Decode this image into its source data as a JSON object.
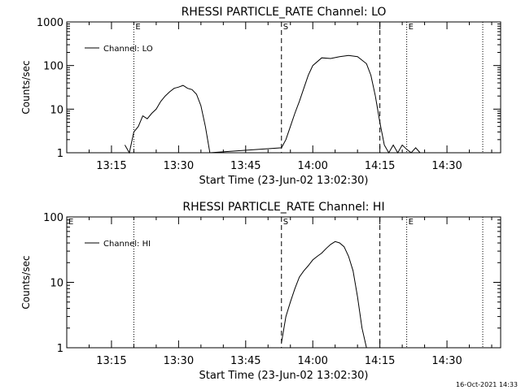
{
  "footer": {
    "date_stamp": "16-Oct-2021 14:33"
  },
  "chart_data": [
    {
      "type": "line",
      "title": "RHESSI PARTICLE_RATE Channel: LO",
      "xlabel": "Start Time (23-Jun-02 13:02:30)",
      "ylabel": "Counts/sec",
      "yscale": "log",
      "xlim": [
        "13:05",
        "14:42"
      ],
      "ylim": [
        1,
        1000
      ],
      "x_ticks": [
        "13:15",
        "13:30",
        "13:45",
        "14:00",
        "14:15",
        "14:30"
      ],
      "y_ticks": [
        "1",
        "10",
        "100",
        "1000"
      ],
      "legend": {
        "position": "top-left",
        "label": "Channel: LO"
      },
      "markers": [
        {
          "time": "13:20",
          "style": "dotted",
          "label": "E"
        },
        {
          "time": "13:53",
          "style": "dashed",
          "label": "S"
        },
        {
          "time": "14:15",
          "style": "dashed",
          "label": ""
        },
        {
          "time": "14:21",
          "style": "dotted",
          "label": "E"
        },
        {
          "time": "14:38",
          "style": "dotted",
          "label": ""
        }
      ],
      "series": [
        {
          "x": [
            "13:18",
            "13:19",
            "13:20",
            "13:21",
            "13:22",
            "13:23",
            "13:24",
            "13:25",
            "13:26",
            "13:27",
            "13:28",
            "13:29",
            "13:30",
            "13:31",
            "13:32",
            "13:33",
            "13:34",
            "13:35",
            "13:36",
            "13:37",
            "13:53",
            "13:54",
            "13:55",
            "13:56",
            "13:57",
            "13:58",
            "13:59",
            "14:00",
            "14:02",
            "14:04",
            "14:06",
            "14:08",
            "14:10",
            "14:12",
            "14:13",
            "14:14",
            "14:15",
            "14:16",
            "14:17",
            "14:18",
            "14:19",
            "14:20",
            "14:21",
            "14:22",
            "14:23",
            "14:24"
          ],
          "y": [
            1.5,
            1,
            3,
            4,
            7,
            6,
            8,
            10,
            15,
            20,
            25,
            30,
            32,
            35,
            30,
            28,
            22,
            12,
            4,
            1,
            1.3,
            2,
            4,
            8,
            15,
            30,
            60,
            100,
            150,
            145,
            160,
            170,
            160,
            110,
            60,
            20,
            5,
            1.5,
            1,
            1.5,
            1,
            1.5,
            1.2,
            1,
            1.3,
            1
          ]
        }
      ]
    },
    {
      "type": "line",
      "title": "RHESSI PARTICLE_RATE Channel: HI",
      "xlabel": "Start Time (23-Jun-02 13:02:30)",
      "ylabel": "Counts/sec",
      "yscale": "log",
      "xlim": [
        "13:05",
        "14:42"
      ],
      "ylim": [
        1,
        100
      ],
      "x_ticks": [
        "13:15",
        "13:30",
        "13:45",
        "14:00",
        "14:15",
        "14:30"
      ],
      "y_ticks": [
        "1",
        "10",
        "100"
      ],
      "legend": {
        "position": "top-left",
        "label": "Channel: HI"
      },
      "markers": [
        {
          "time": "13:05",
          "style": "none",
          "label": "E"
        },
        {
          "time": "13:20",
          "style": "dotted",
          "label": ""
        },
        {
          "time": "13:53",
          "style": "dashed",
          "label": "S"
        },
        {
          "time": "14:15",
          "style": "dashed",
          "label": ""
        },
        {
          "time": "14:21",
          "style": "dotted",
          "label": "E"
        },
        {
          "time": "14:38",
          "style": "dotted",
          "label": ""
        }
      ],
      "series": [
        {
          "x": [
            "13:53",
            "13:54",
            "13:55",
            "13:56",
            "13:57",
            "13:58",
            "13:59",
            "14:00",
            "14:01",
            "14:02",
            "14:03",
            "14:04",
            "14:05",
            "14:06",
            "14:07",
            "14:08",
            "14:09",
            "14:10",
            "14:11",
            "14:12"
          ],
          "y": [
            1.2,
            3,
            5,
            8,
            12,
            15,
            18,
            22,
            25,
            28,
            33,
            38,
            42,
            40,
            35,
            25,
            15,
            6,
            2,
            1
          ]
        }
      ]
    }
  ]
}
